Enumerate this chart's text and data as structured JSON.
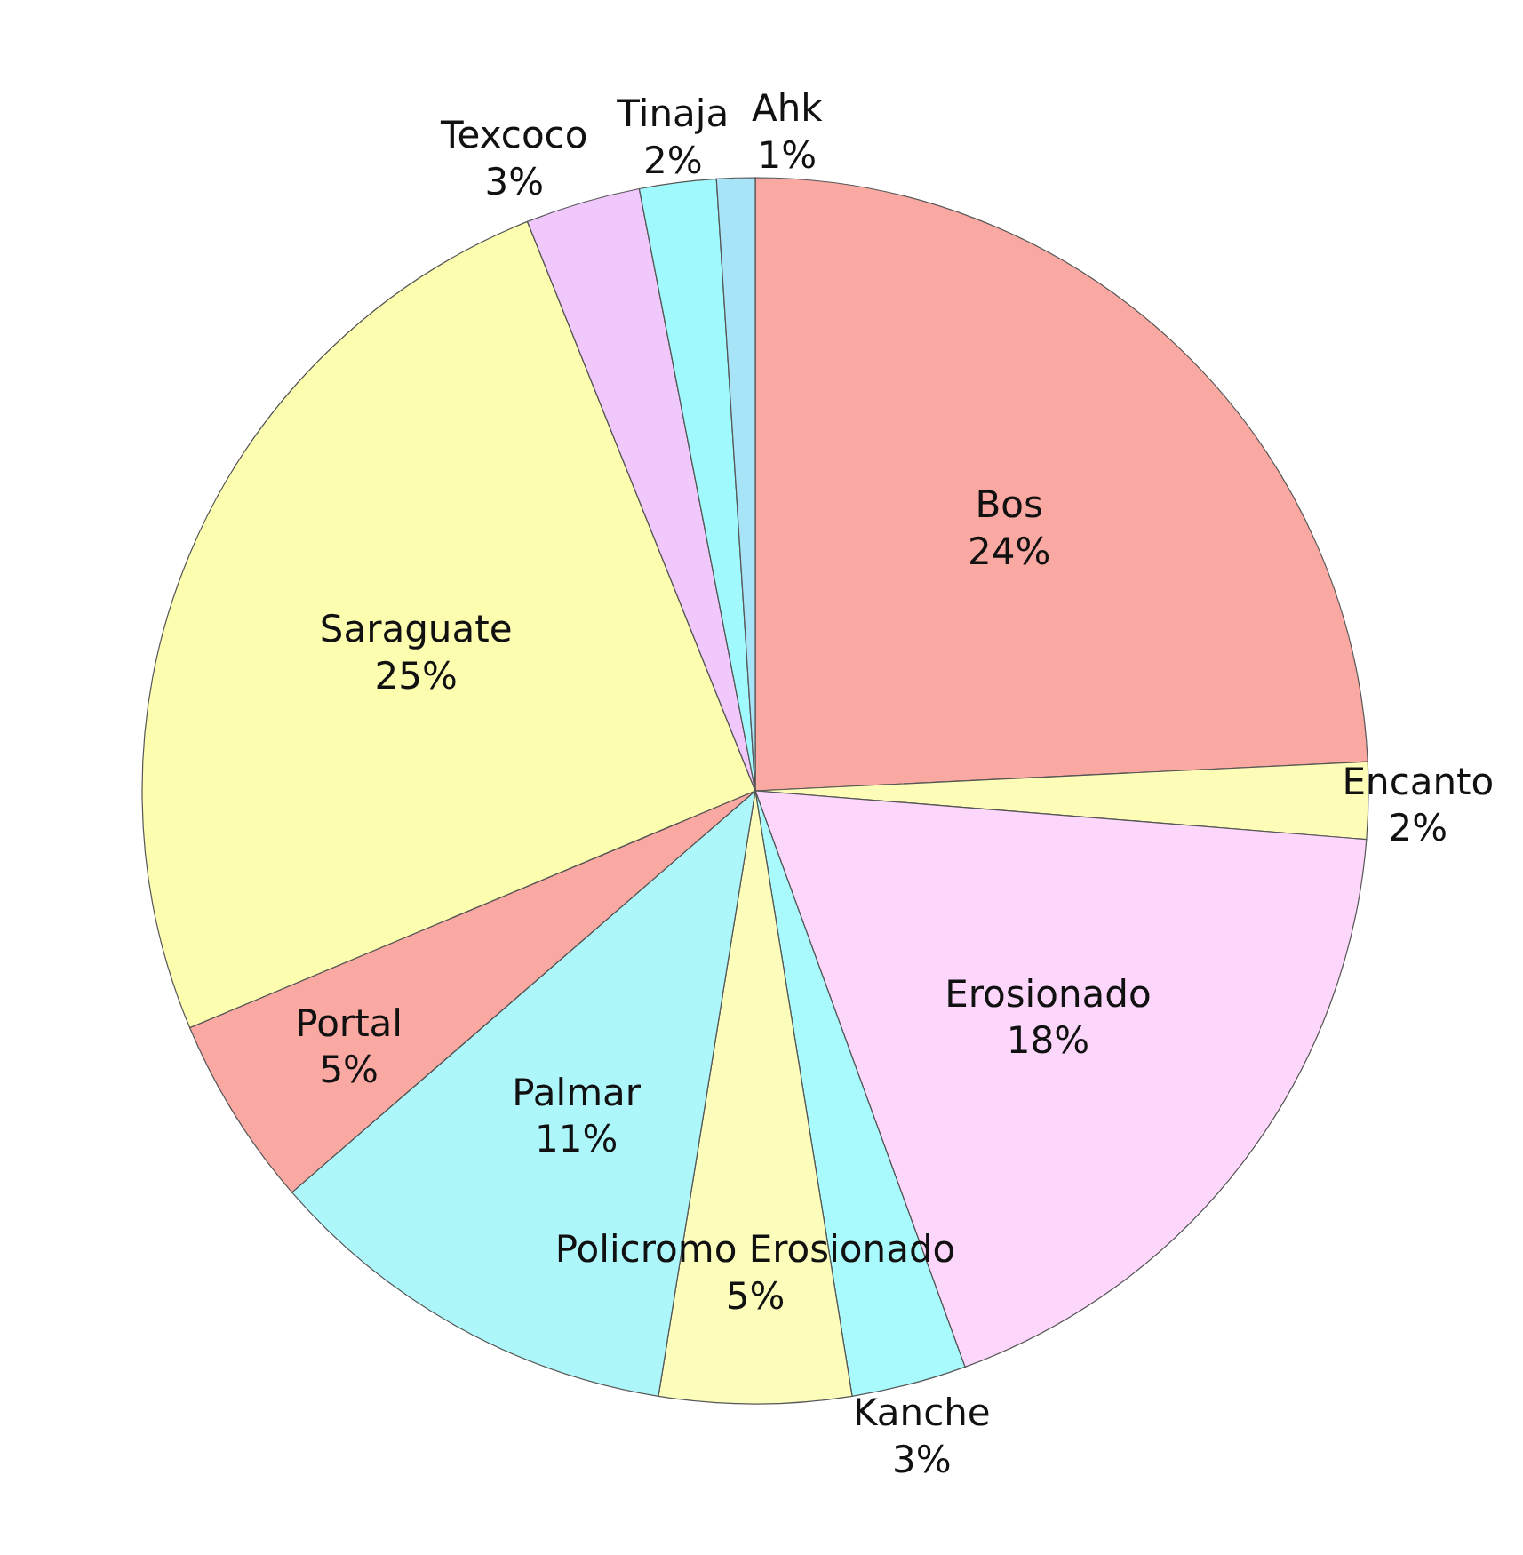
{
  "chart_data": {
    "type": "pie",
    "categories": [
      "Bos",
      "Encanto",
      "Erosionado",
      "Kanche",
      "Policromo Erosionado",
      "Palmar",
      "Portal",
      "Saraguate",
      "Texcoco",
      "Tinaja",
      "Ahk"
    ],
    "values": [
      24,
      2,
      18,
      3,
      5,
      11,
      5,
      25,
      3,
      2,
      1
    ],
    "value_labels": [
      "24%",
      "2%",
      "18%",
      "3%",
      "5%",
      "11%",
      "5%",
      "25%",
      "3%",
      "2%",
      "1%"
    ],
    "colors": [
      "#faa8a2",
      "#fdfdb8",
      "#fdd6fb",
      "#a8fafd",
      "#fdfdbb",
      "#adf7fb",
      "#faa8a2",
      "#fdfdb0",
      "#f0c8fb",
      "#a0fafd",
      "#a8e4f8"
    ]
  }
}
